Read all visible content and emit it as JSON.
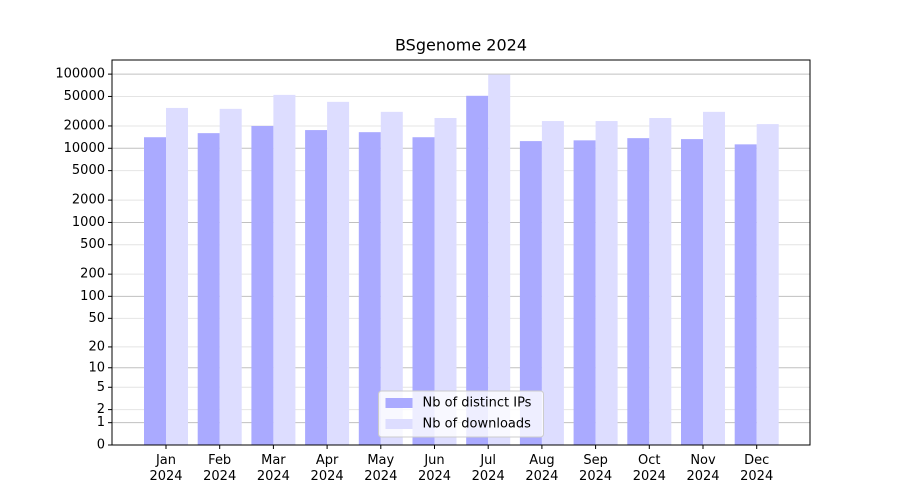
{
  "chart_data": {
    "type": "bar",
    "title": "BSgenome 2024",
    "scale": "log1p",
    "categories": [
      "Jan\n2024",
      "Feb\n2024",
      "Mar\n2024",
      "Apr\n2024",
      "May\n2024",
      "Jun\n2024",
      "Jul\n2024",
      "Aug\n2024",
      "Sep\n2024",
      "Oct\n2024",
      "Nov\n2024",
      "Dec\n2024"
    ],
    "series": [
      {
        "name": "Nb of distinct IPs",
        "color": "#aaaaff",
        "values": [
          14100,
          16000,
          20000,
          17600,
          16500,
          14100,
          51000,
          12500,
          12800,
          13700,
          13300,
          11300
        ]
      },
      {
        "name": "Nb of downloads",
        "color": "#ddddff",
        "values": [
          35000,
          34000,
          52500,
          42300,
          31000,
          25600,
          98500,
          23300,
          23300,
          25600,
          31000,
          21200
        ]
      }
    ],
    "ylim": [
      0,
      155000
    ],
    "yticks": [
      0,
      1,
      2,
      5,
      10,
      20,
      50,
      100,
      200,
      500,
      1000,
      2000,
      5000,
      10000,
      20000,
      50000,
      100000
    ],
    "grid": true,
    "legend": "lower center"
  }
}
